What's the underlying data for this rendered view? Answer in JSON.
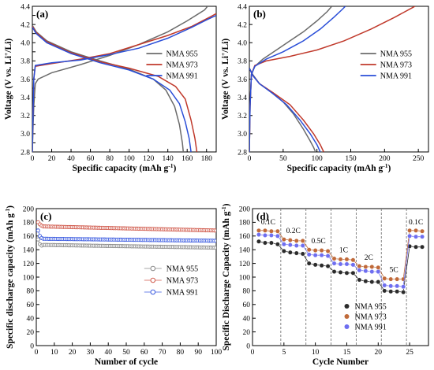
{
  "chart_data": [
    {
      "type": "line",
      "panel_label": "(a)",
      "xlabel": "Specific capacity (mAh g",
      "xlabel_sup": "-1",
      "xlabel_end": ")",
      "ylabel": "Voltage (V vs. Li",
      "ylabel_sup": "+",
      "ylabel_end": "/Li)",
      "xlim": [
        0,
        190
      ],
      "ylim": [
        2.8,
        4.4
      ],
      "xticks": [
        0,
        20,
        40,
        60,
        80,
        100,
        120,
        140,
        160,
        180
      ],
      "yticks": [
        2.8,
        2.9,
        3.0,
        3.1,
        3.2,
        3.3,
        3.4,
        3.5,
        3.6,
        3.7,
        3.8,
        3.9,
        4.0,
        4.1,
        4.2,
        4.3,
        4.4
      ],
      "ytick_labels": [
        "2.8",
        "",
        "3.0",
        "",
        "3.2",
        "",
        "3.4",
        "",
        "3.6",
        "",
        "3.8",
        "",
        "4.0",
        "",
        "4.2",
        "",
        "4.4"
      ],
      "legend": "right",
      "series": [
        {
          "name": "NMA 955",
          "color": "#6b6b6b",
          "charge": [
            [
              0,
              2.8
            ],
            [
              0.5,
              3.0
            ],
            [
              1.5,
              3.3
            ],
            [
              3,
              3.55
            ],
            [
              6,
              3.6
            ],
            [
              20,
              3.67
            ],
            [
              50,
              3.76
            ],
            [
              80,
              3.86
            ],
            [
              110,
              3.98
            ],
            [
              140,
              4.12
            ],
            [
              160,
              4.24
            ],
            [
              178,
              4.36
            ],
            [
              181,
              4.4
            ]
          ],
          "discharge": [
            [
              0,
              4.19
            ],
            [
              4,
              4.12
            ],
            [
              15,
              4.02
            ],
            [
              40,
              3.9
            ],
            [
              70,
              3.8
            ],
            [
              100,
              3.71
            ],
            [
              125,
              3.6
            ],
            [
              138,
              3.48
            ],
            [
              147,
              3.3
            ],
            [
              152,
              3.1
            ],
            [
              155,
              2.9
            ],
            [
              156,
              2.8
            ]
          ]
        },
        {
          "name": "NMA 973",
          "color": "#c0392b",
          "charge": [
            [
              0,
              2.8
            ],
            [
              0.5,
              3.1
            ],
            [
              1.5,
              3.6
            ],
            [
              3,
              3.74
            ],
            [
              20,
              3.77
            ],
            [
              50,
              3.82
            ],
            [
              80,
              3.88
            ],
            [
              110,
              3.98
            ],
            [
              140,
              4.08
            ],
            [
              165,
              4.18
            ],
            [
              185,
              4.29
            ],
            [
              190,
              4.32
            ]
          ],
          "discharge": [
            [
              0,
              4.18
            ],
            [
              4,
              4.11
            ],
            [
              15,
              4.01
            ],
            [
              40,
              3.89
            ],
            [
              70,
              3.79
            ],
            [
              100,
              3.72
            ],
            [
              130,
              3.63
            ],
            [
              148,
              3.52
            ],
            [
              158,
              3.38
            ],
            [
              164,
              3.15
            ],
            [
              168,
              2.95
            ],
            [
              170,
              2.8
            ]
          ]
        },
        {
          "name": "NMA 991",
          "color": "#2a4ed8",
          "charge": [
            [
              0,
              2.8
            ],
            [
              0.5,
              3.1
            ],
            [
              1.5,
              3.6
            ],
            [
              3,
              3.75
            ],
            [
              20,
              3.78
            ],
            [
              50,
              3.81
            ],
            [
              80,
              3.87
            ],
            [
              110,
              3.94
            ],
            [
              140,
              4.05
            ],
            [
              165,
              4.17
            ],
            [
              180,
              4.25
            ],
            [
              190,
              4.3
            ]
          ],
          "discharge": [
            [
              0,
              4.17
            ],
            [
              4,
              4.1
            ],
            [
              15,
              4.0
            ],
            [
              40,
              3.88
            ],
            [
              70,
              3.78
            ],
            [
              100,
              3.7
            ],
            [
              125,
              3.6
            ],
            [
              142,
              3.48
            ],
            [
              152,
              3.33
            ],
            [
              158,
              3.13
            ],
            [
              162,
              2.95
            ],
            [
              164,
              2.8
            ]
          ]
        }
      ]
    },
    {
      "type": "line",
      "panel_label": "(b)",
      "xlabel": "Specific capacity (mAh g",
      "xlabel_sup": "-1",
      "xlabel_end": ")",
      "ylabel": "Voltage (V vs. Li",
      "ylabel_sup": "+",
      "ylabel_end": "/Li)",
      "xlim": [
        0,
        265
      ],
      "ylim": [
        2.8,
        4.4
      ],
      "xticks": [
        0,
        50,
        100,
        150,
        200,
        250
      ],
      "yticks": [
        2.8,
        3.0,
        3.2,
        3.4,
        3.6,
        3.8,
        4.0,
        4.2,
        4.4
      ],
      "ytick_labels": [
        "2.8",
        "3.0",
        "3.2",
        "3.4",
        "3.6",
        "3.8",
        "4.0",
        "4.2",
        "4.4"
      ],
      "legend": "right",
      "series": [
        {
          "name": "NMA 955",
          "color": "#6b6b6b",
          "charge": [
            [
              0,
              2.8
            ],
            [
              1,
              3.3
            ],
            [
              3,
              3.65
            ],
            [
              8,
              3.74
            ],
            [
              20,
              3.82
            ],
            [
              40,
              3.92
            ],
            [
              60,
              4.02
            ],
            [
              80,
              4.12
            ],
            [
              100,
              4.24
            ],
            [
              115,
              4.34
            ],
            [
              122,
              4.4
            ]
          ],
          "discharge": [
            [
              0,
              3.72
            ],
            [
              5,
              3.65
            ],
            [
              15,
              3.55
            ],
            [
              30,
              3.47
            ],
            [
              50,
              3.35
            ],
            [
              65,
              3.22
            ],
            [
              80,
              3.05
            ],
            [
              90,
              2.92
            ],
            [
              95,
              2.85
            ],
            [
              98,
              2.8
            ]
          ]
        },
        {
          "name": "NMA 973",
          "color": "#c0392b",
          "charge": [
            [
              0,
              2.8
            ],
            [
              1,
              3.3
            ],
            [
              3,
              3.65
            ],
            [
              8,
              3.75
            ],
            [
              25,
              3.8
            ],
            [
              60,
              3.85
            ],
            [
              100,
              3.92
            ],
            [
              140,
              4.02
            ],
            [
              180,
              4.15
            ],
            [
              215,
              4.28
            ],
            [
              240,
              4.38
            ],
            [
              245,
              4.4
            ]
          ],
          "discharge": [
            [
              0,
              3.72
            ],
            [
              5,
              3.64
            ],
            [
              15,
              3.55
            ],
            [
              35,
              3.45
            ],
            [
              60,
              3.32
            ],
            [
              80,
              3.15
            ],
            [
              95,
              3.0
            ],
            [
              105,
              2.88
            ],
            [
              110,
              2.8
            ]
          ]
        },
        {
          "name": "NMA 991",
          "color": "#2a4ed8",
          "charge": [
            [
              0,
              2.8
            ],
            [
              1,
              3.3
            ],
            [
              3,
              3.65
            ],
            [
              8,
              3.74
            ],
            [
              25,
              3.82
            ],
            [
              50,
              3.9
            ],
            [
              80,
              4.02
            ],
            [
              105,
              4.15
            ],
            [
              125,
              4.28
            ],
            [
              138,
              4.37
            ],
            [
              142,
              4.4
            ]
          ],
          "discharge": [
            [
              0,
              3.72
            ],
            [
              5,
              3.64
            ],
            [
              15,
              3.55
            ],
            [
              35,
              3.44
            ],
            [
              55,
              3.32
            ],
            [
              75,
              3.15
            ],
            [
              90,
              3.0
            ],
            [
              100,
              2.88
            ],
            [
              105,
              2.8
            ]
          ]
        }
      ]
    },
    {
      "type": "scatter",
      "panel_label": "(c)",
      "xlabel": "Number of cycle",
      "ylabel": "Specific discharge capacity (mAh g",
      "ylabel_sup": "-1",
      "ylabel_end": ")",
      "xlim": [
        0,
        100
      ],
      "ylim": [
        0,
        200
      ],
      "xticks": [
        0,
        10,
        20,
        30,
        40,
        50,
        60,
        70,
        80,
        90,
        100
      ],
      "yticks": [
        0,
        20,
        40,
        60,
        80,
        100,
        120,
        140,
        160,
        180,
        200
      ],
      "legend": "right",
      "series": [
        {
          "name": "NMA 955",
          "color": "#8a8a8a",
          "start": [
            155,
            148,
            146
          ],
          "plateau_from": 147,
          "plateau_to": 143
        },
        {
          "name": "NMA 973",
          "color": "#d05a4c",
          "start": [
            180,
            177,
            175
          ],
          "plateau_from": 174,
          "plateau_to": 168
        },
        {
          "name": "NMA 991",
          "color": "#3b5be0",
          "start": [
            168,
            160,
            157
          ],
          "plateau_from": 156,
          "plateau_to": 153
        }
      ]
    },
    {
      "type": "scatter",
      "panel_label": "(d)",
      "xlabel": "Cycle Number",
      "ylabel": "Specific Discharge Capacity (mAh g",
      "ylabel_sup": "-1",
      "ylabel_end": ")",
      "xlim": [
        0,
        28
      ],
      "ylim": [
        0,
        200
      ],
      "xticks": [
        0,
        5,
        10,
        15,
        20,
        25
      ],
      "yticks": [
        0,
        20,
        40,
        60,
        80,
        100,
        120,
        140,
        160,
        180,
        200
      ],
      "legend": "bottom-right",
      "rates": [
        {
          "label": "0.1C",
          "from": 1,
          "to": 4
        },
        {
          "label": "0.2C",
          "from": 5,
          "to": 8
        },
        {
          "label": "0.5C",
          "from": 9,
          "to": 12
        },
        {
          "label": "1C",
          "from": 13,
          "to": 16
        },
        {
          "label": "2C",
          "from": 17,
          "to": 20
        },
        {
          "label": "5C",
          "from": 21,
          "to": 24
        },
        {
          "label": "0.1C",
          "from": 25,
          "to": 27
        }
      ],
      "series": [
        {
          "name": "NMA 955",
          "color": "#2b2b2b",
          "values": [
            152,
            150,
            150,
            148,
            138,
            136,
            135,
            134,
            120,
            118,
            117,
            116,
            108,
            107,
            106,
            106,
            96,
            94,
            93,
            93,
            80,
            79,
            79,
            78,
            145,
            144,
            144
          ]
        },
        {
          "name": "NMA 973",
          "color": "#c06a3a",
          "values": [
            168,
            168,
            167,
            167,
            155,
            154,
            153,
            153,
            140,
            139,
            139,
            138,
            127,
            126,
            126,
            125,
            116,
            115,
            115,
            114,
            98,
            97,
            97,
            97,
            168,
            168,
            167
          ]
        },
        {
          "name": "NMA 991",
          "color": "#6e6ef0",
          "values": [
            162,
            161,
            161,
            160,
            148,
            147,
            146,
            146,
            133,
            132,
            132,
            131,
            120,
            119,
            119,
            118,
            110,
            109,
            108,
            108,
            88,
            87,
            87,
            86,
            160,
            159,
            159
          ]
        }
      ]
    }
  ]
}
